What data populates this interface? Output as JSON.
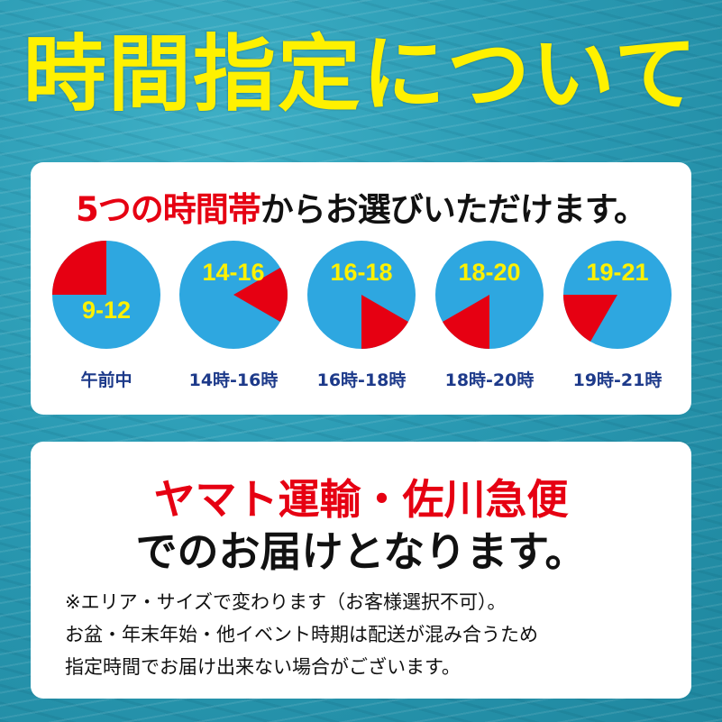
{
  "title": "時間指定について",
  "card1": {
    "subtitle_red": "5つの時間帯",
    "subtitle_rest": "からお選びいただけます。",
    "slots": [
      {
        "text": "9-12",
        "label": "午前中",
        "start_hour": 9,
        "end_hour": 12,
        "text_pos": "bottom"
      },
      {
        "text": "14-16",
        "label": "14時-16時",
        "start_hour": 14,
        "end_hour": 16,
        "text_pos": "top"
      },
      {
        "text": "16-18",
        "label": "16時-18時",
        "start_hour": 16,
        "end_hour": 18,
        "text_pos": "top"
      },
      {
        "text": "18-20",
        "label": "18時-20時",
        "start_hour": 18,
        "end_hour": 20,
        "text_pos": "top"
      },
      {
        "text": "19-21",
        "label": "19時-21時",
        "start_hour": 19,
        "end_hour": 21,
        "text_pos": "top"
      }
    ]
  },
  "card2": {
    "carriers": "ヤマト運輸・佐川急便",
    "delivery": "でのお届けとなります。",
    "notes": [
      "※エリア・サイズで変わります（お客様選択不可）。",
      "お盆・年末年始・他イベント時期は配送が混み合うため",
      "指定時間でお届け出来ない場合がございます。"
    ]
  },
  "colors": {
    "clock": "#2ea7e0",
    "wedge": "#e60012",
    "clock_text": "#fff100",
    "label": "#1d3a8a"
  }
}
